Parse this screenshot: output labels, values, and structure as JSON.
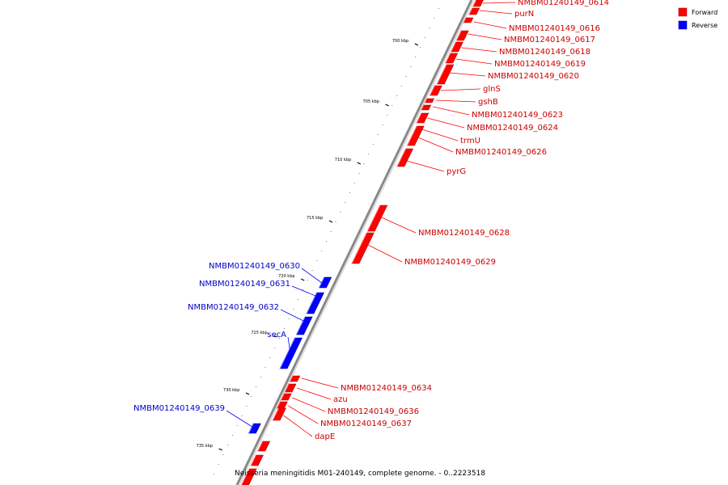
{
  "genome_caption": "Neisseria meningitidis M01-240149, complete genome. - 0..2223518",
  "legend": [
    {
      "label": "Forward",
      "color": "#ff0000"
    },
    {
      "label": "Reverse",
      "color": "#0000ff"
    }
  ],
  "colors": {
    "forward": "#ff0000",
    "reverse": "#0000ff",
    "backbone": "#888888"
  },
  "ticks": [
    "700 kbp",
    "705 kbp",
    "710 kbp",
    "715 kbp",
    "720 kbp",
    "725 kbp",
    "730 kbp",
    "735 kbp"
  ],
  "forward_labels": [
    "NMBM01240149_0614",
    "purN",
    "NMBM01240149_0616",
    "NMBM01240149_0617",
    "NMBM01240149_0618",
    "NMBM01240149_0619",
    "NMBM01240149_0620",
    "glnS",
    "gshB",
    "NMBM01240149_0623",
    "NMBM01240149_0624",
    "trmU",
    "NMBM01240149_0626",
    "pyrG",
    "NMBM01240149_0628",
    "NMBM01240149_0629",
    "NMBM01240149_0634",
    "azu",
    "NMBM01240149_0636",
    "NMBM01240149_0637",
    "dapE"
  ],
  "reverse_labels": [
    "NMBM01240149_0630",
    "NMBM01240149_0631",
    "NMBM01240149_0632",
    "secA",
    "NMBM01240149_0639"
  ]
}
